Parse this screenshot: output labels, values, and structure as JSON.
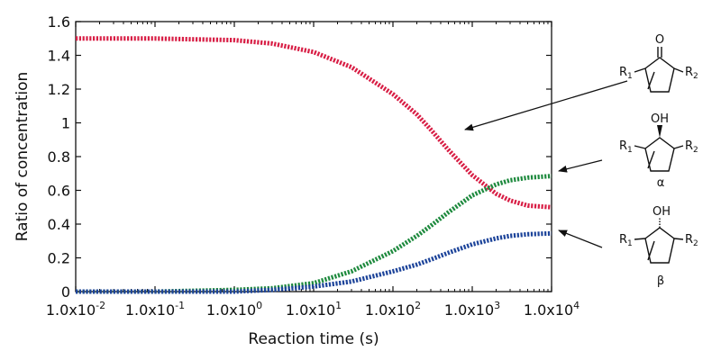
{
  "chart_data": {
    "type": "line",
    "title": "",
    "xlabel": "Reaction time (s)",
    "ylabel": "Ratio of concentration",
    "xscale": "log",
    "xlim": [
      0.01,
      10000
    ],
    "ylim": [
      0,
      1.6
    ],
    "x_ticks": [
      0.01,
      0.1,
      1,
      10,
      100,
      1000,
      10000
    ],
    "x_tick_labels": [
      "1.0x10^-2",
      "1.0x10^-1",
      "1.0x10^0",
      "1.0x10^1",
      "1.0x10^2",
      "1.0x10^3",
      "1.0x10^4"
    ],
    "y_ticks": [
      0,
      0.2,
      0.4,
      0.6,
      0.8,
      1,
      1.2,
      1.4,
      1.6
    ],
    "y_tick_labels": [
      "0",
      "0.2",
      "0.4",
      "0.6",
      "0.8",
      "1",
      "1.2",
      "1.4",
      "1.6"
    ],
    "grid": false,
    "x": [
      0.01,
      0.1,
      1,
      3,
      10,
      30,
      100,
      200,
      300,
      500,
      1000,
      2000,
      3000,
      5000,
      10000
    ],
    "series": [
      {
        "name": "ketone",
        "color": "#d81e45",
        "values": [
          1.5,
          1.5,
          1.49,
          1.47,
          1.42,
          1.33,
          1.17,
          1.05,
          0.96,
          0.84,
          0.69,
          0.58,
          0.54,
          0.51,
          0.5
        ]
      },
      {
        "name": "alpha alcohol",
        "color": "#1e8a3e",
        "values": [
          0.0,
          0.0,
          0.01,
          0.02,
          0.05,
          0.12,
          0.24,
          0.33,
          0.39,
          0.47,
          0.57,
          0.635,
          0.66,
          0.675,
          0.685
        ]
      },
      {
        "name": "beta alcohol",
        "color": "#1d449a",
        "values": [
          0.0,
          0.0,
          0.0,
          0.01,
          0.03,
          0.06,
          0.12,
          0.16,
          0.19,
          0.23,
          0.28,
          0.315,
          0.33,
          0.34,
          0.345
        ]
      }
    ],
    "annotations": {
      "ketone": {
        "carbonyl": "O",
        "r1": "R",
        "r1_sub": "1",
        "r2": "R",
        "r2_sub": "2"
      },
      "alpha": {
        "hydroxyl": "OH",
        "r1": "R",
        "r1_sub": "1",
        "r2": "R",
        "r2_sub": "2",
        "label": "α"
      },
      "beta": {
        "hydroxyl": "OH",
        "r1": "R",
        "r1_sub": "1",
        "r2": "R",
        "r2_sub": "2",
        "label": "β"
      }
    }
  }
}
